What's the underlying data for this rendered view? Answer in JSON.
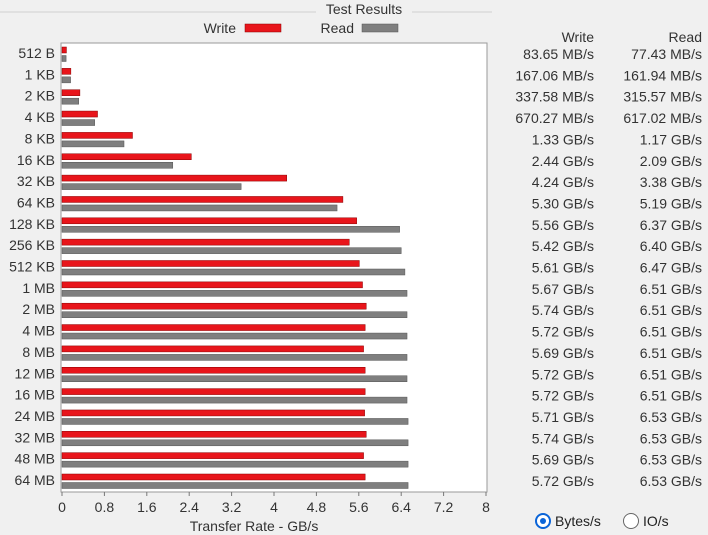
{
  "chart_data": {
    "type": "bar",
    "orientation": "horizontal",
    "title": "Test Results",
    "xlabel": "Transfer Rate - GB/s",
    "xlim": [
      0,
      8
    ],
    "x_ticks": [
      "0",
      "0.8",
      "1.6",
      "2.4",
      "3.2",
      "4",
      "4.8",
      "5.6",
      "6.4",
      "7.2",
      "8"
    ],
    "legend_position": "top",
    "categories": [
      "512 B",
      "1 KB",
      "2 KB",
      "4 KB",
      "8 KB",
      "16 KB",
      "32 KB",
      "64 KB",
      "128 KB",
      "256 KB",
      "512 KB",
      "1 MB",
      "2 MB",
      "4 MB",
      "8 MB",
      "12 MB",
      "16 MB",
      "24 MB",
      "32 MB",
      "48 MB",
      "64 MB"
    ],
    "series": [
      {
        "name": "Write",
        "color": "#e8151b",
        "values": [
          0.08365,
          0.16706,
          0.33758,
          0.67027,
          1.33,
          2.44,
          4.24,
          5.3,
          5.56,
          5.42,
          5.61,
          5.67,
          5.74,
          5.72,
          5.69,
          5.72,
          5.72,
          5.71,
          5.74,
          5.69,
          5.72
        ]
      },
      {
        "name": "Read",
        "color": "#7f7f7f",
        "values": [
          0.07743,
          0.16194,
          0.31557,
          0.61702,
          1.17,
          2.09,
          3.38,
          5.19,
          6.37,
          6.4,
          6.47,
          6.51,
          6.51,
          6.51,
          6.51,
          6.51,
          6.51,
          6.53,
          6.53,
          6.53,
          6.53
        ]
      }
    ]
  },
  "table": {
    "headers": [
      "Write",
      "Read"
    ],
    "rows": [
      [
        "83.65 MB/s",
        "77.43 MB/s"
      ],
      [
        "167.06 MB/s",
        "161.94 MB/s"
      ],
      [
        "337.58 MB/s",
        "315.57 MB/s"
      ],
      [
        "670.27 MB/s",
        "617.02 MB/s"
      ],
      [
        "1.33 GB/s",
        "1.17 GB/s"
      ],
      [
        "2.44 GB/s",
        "2.09 GB/s"
      ],
      [
        "4.24 GB/s",
        "3.38 GB/s"
      ],
      [
        "5.30 GB/s",
        "5.19 GB/s"
      ],
      [
        "5.56 GB/s",
        "6.37 GB/s"
      ],
      [
        "5.42 GB/s",
        "6.40 GB/s"
      ],
      [
        "5.61 GB/s",
        "6.47 GB/s"
      ],
      [
        "5.67 GB/s",
        "6.51 GB/s"
      ],
      [
        "5.74 GB/s",
        "6.51 GB/s"
      ],
      [
        "5.72 GB/s",
        "6.51 GB/s"
      ],
      [
        "5.69 GB/s",
        "6.51 GB/s"
      ],
      [
        "5.72 GB/s",
        "6.51 GB/s"
      ],
      [
        "5.72 GB/s",
        "6.51 GB/s"
      ],
      [
        "5.71 GB/s",
        "6.53 GB/s"
      ],
      [
        "5.74 GB/s",
        "6.53 GB/s"
      ],
      [
        "5.69 GB/s",
        "6.53 GB/s"
      ],
      [
        "5.72 GB/s",
        "6.53 GB/s"
      ]
    ]
  },
  "units": {
    "options": [
      {
        "label": "Bytes/s",
        "checked": true
      },
      {
        "label": "IO/s",
        "checked": false
      }
    ]
  }
}
